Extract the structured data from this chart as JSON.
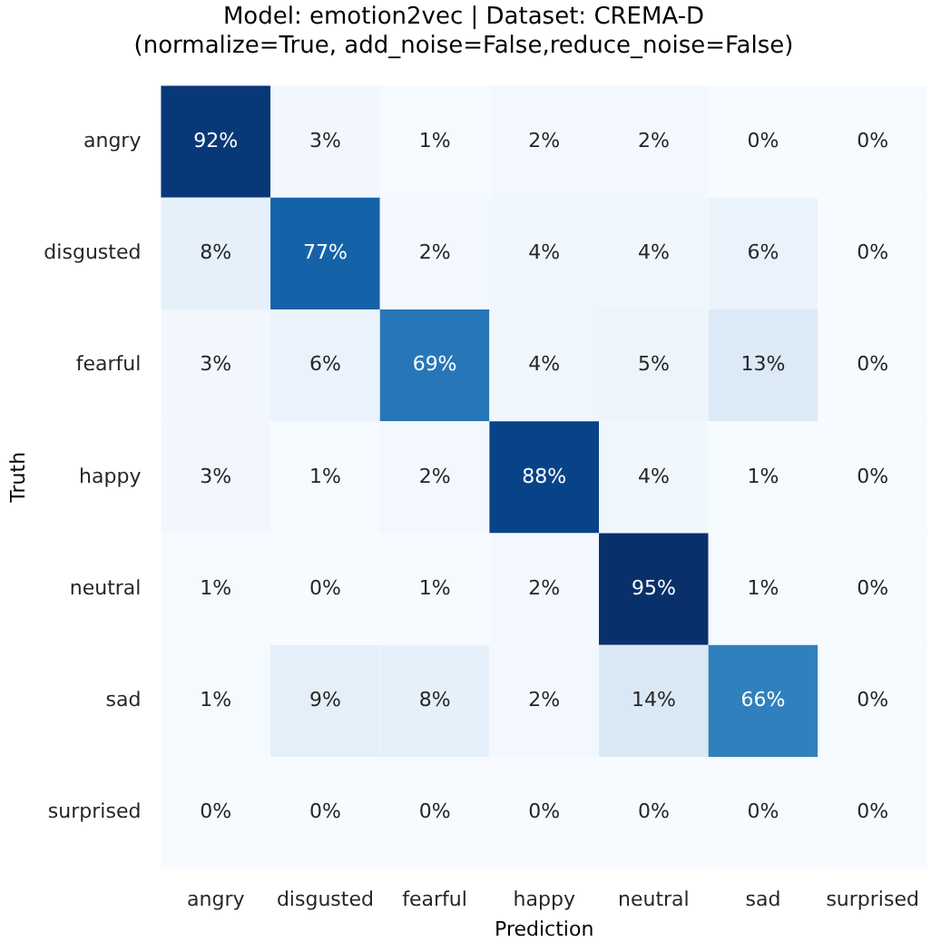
{
  "chart_data": {
    "type": "heatmap",
    "title": "Model: emotion2vec | Dataset: CREMA-D",
    "subtitle": "(normalize=True, add_noise=False,reduce_noise=False)",
    "xlabel": "Prediction",
    "ylabel": "Truth",
    "categories": [
      "angry",
      "disgusted",
      "fearful",
      "happy",
      "neutral",
      "sad",
      "surprised"
    ],
    "y_categories": [
      "angry",
      "disgusted",
      "fearful",
      "happy",
      "neutral",
      "sad",
      "surprised"
    ],
    "cells": [
      [
        92,
        3,
        1,
        2,
        2,
        0,
        0
      ],
      [
        8,
        77,
        2,
        4,
        4,
        6,
        0
      ],
      [
        3,
        6,
        69,
        4,
        5,
        13,
        0
      ],
      [
        3,
        1,
        2,
        88,
        4,
        1,
        0
      ],
      [
        1,
        0,
        1,
        2,
        95,
        1,
        0
      ],
      [
        1,
        9,
        8,
        2,
        14,
        66,
        0
      ],
      [
        0,
        0,
        0,
        0,
        0,
        0,
        0
      ]
    ],
    "cell_labels": [
      [
        "92%",
        "3%",
        "1%",
        "2%",
        "2%",
        "0%",
        "0%"
      ],
      [
        "8%",
        "77%",
        "2%",
        "4%",
        "4%",
        "6%",
        "0%"
      ],
      [
        "3%",
        "6%",
        "69%",
        "4%",
        "5%",
        "13%",
        "0%"
      ],
      [
        "3%",
        "1%",
        "2%",
        "88%",
        "4%",
        "1%",
        "0%"
      ],
      [
        "1%",
        "0%",
        "1%",
        "2%",
        "95%",
        "1%",
        "0%"
      ],
      [
        "1%",
        "9%",
        "8%",
        "2%",
        "14%",
        "66%",
        "0%"
      ],
      [
        "0%",
        "0%",
        "0%",
        "0%",
        "0%",
        "0%",
        "0%"
      ]
    ]
  }
}
